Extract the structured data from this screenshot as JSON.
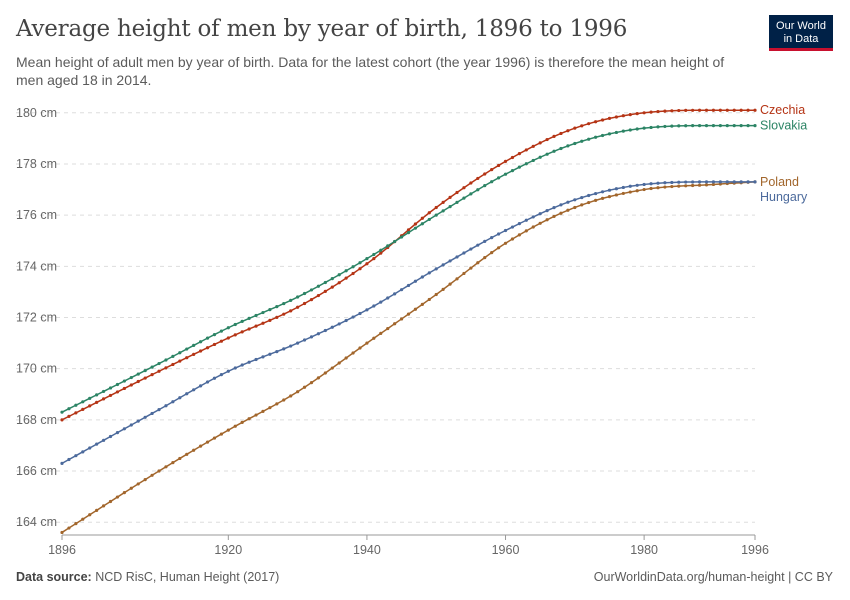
{
  "header": {
    "title": "Average height of men by year of birth, 1896 to 1996",
    "subtitle": "Mean height of adult men by year of birth. Data for the latest cohort (the year 1996) is therefore the mean height of men aged 18 in 2014.",
    "logo_line1": "Our World",
    "logo_line2": "in Data",
    "logo_bg": "#002147",
    "logo_accent": "#c8102e"
  },
  "footer": {
    "source_label": "Data source:",
    "source_text": "NCD RisC, Human Height (2017)",
    "credit": "OurWorldinData.org/human-height | CC BY"
  },
  "chart_data": {
    "type": "line",
    "title": "Average height of men by year of birth, 1896 to 1996",
    "xlabel": "",
    "ylabel": "",
    "x_start": 1896,
    "x_end": 1996,
    "xlim": [
      1896,
      1996
    ],
    "ylim": [
      163.5,
      180.5
    ],
    "x_ticks": [
      1896,
      1920,
      1940,
      1960,
      1980,
      1996
    ],
    "y_ticks": [
      164,
      166,
      168,
      170,
      172,
      174,
      176,
      178,
      180
    ],
    "y_tick_labels": [
      "164 cm",
      "166 cm",
      "168 cm",
      "170 cm",
      "172 cm",
      "174 cm",
      "176 cm",
      "178 cm",
      "180 cm"
    ],
    "grid": "horizontal dashed",
    "markers": true,
    "legend": "inline labels at line ends (right)",
    "series": [
      {
        "name": "Czechia",
        "color": "#b53415",
        "knots": [
          [
            1896,
            168.0
          ],
          [
            1910,
            169.9
          ],
          [
            1920,
            171.2
          ],
          [
            1930,
            172.4
          ],
          [
            1940,
            174.1
          ],
          [
            1950,
            176.3
          ],
          [
            1960,
            178.1
          ],
          [
            1970,
            179.4
          ],
          [
            1980,
            180.0
          ],
          [
            1990,
            180.1
          ],
          [
            1996,
            180.1
          ]
        ]
      },
      {
        "name": "Slovakia",
        "color": "#2c8465",
        "knots": [
          [
            1896,
            168.3
          ],
          [
            1910,
            170.2
          ],
          [
            1920,
            171.6
          ],
          [
            1930,
            172.8
          ],
          [
            1940,
            174.3
          ],
          [
            1950,
            176.0
          ],
          [
            1960,
            177.6
          ],
          [
            1970,
            178.8
          ],
          [
            1980,
            179.4
          ],
          [
            1990,
            179.5
          ],
          [
            1996,
            179.5
          ]
        ]
      },
      {
        "name": "Poland",
        "color": "#a2662c",
        "knots": [
          [
            1896,
            163.6
          ],
          [
            1910,
            166.0
          ],
          [
            1920,
            167.6
          ],
          [
            1930,
            169.1
          ],
          [
            1940,
            171.0
          ],
          [
            1950,
            172.9
          ],
          [
            1960,
            174.9
          ],
          [
            1970,
            176.3
          ],
          [
            1980,
            177.0
          ],
          [
            1990,
            177.2
          ],
          [
            1996,
            177.3
          ]
        ]
      },
      {
        "name": "Hungary",
        "color": "#4c6a9c",
        "knots": [
          [
            1896,
            166.3
          ],
          [
            1910,
            168.4
          ],
          [
            1920,
            169.9
          ],
          [
            1930,
            171.0
          ],
          [
            1940,
            172.3
          ],
          [
            1950,
            173.9
          ],
          [
            1960,
            175.4
          ],
          [
            1970,
            176.6
          ],
          [
            1980,
            177.2
          ],
          [
            1990,
            177.3
          ],
          [
            1996,
            177.3
          ]
        ]
      }
    ],
    "label_order": [
      "Czechia",
      "Slovakia",
      "Poland",
      "Hungary"
    ]
  }
}
